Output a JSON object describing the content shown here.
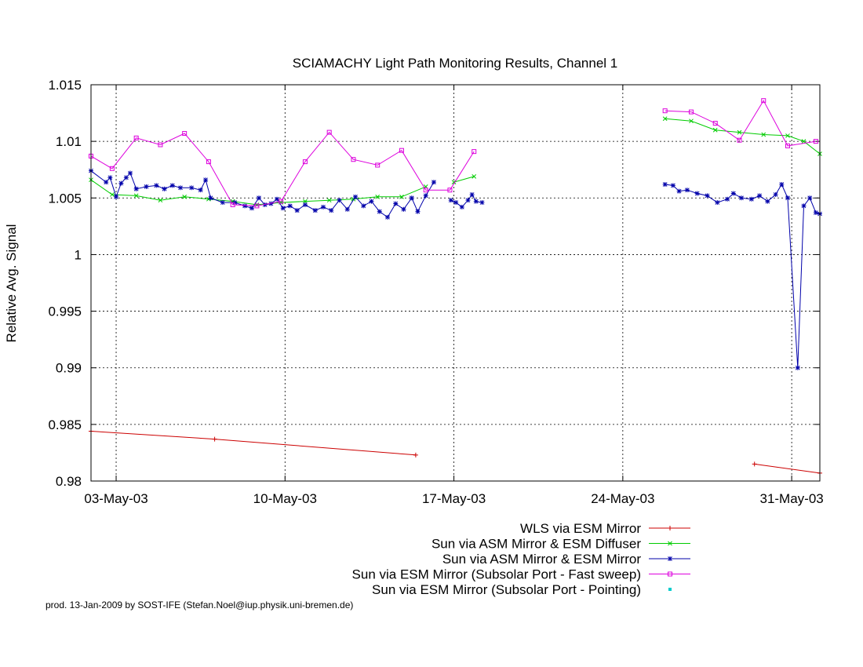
{
  "chart_data": {
    "type": "line",
    "title": "SCIAMACHY Light Path Monitoring Results, Channel 1",
    "xlabel": "",
    "ylabel": "Relative Avg. Signal",
    "x_unit": "date",
    "xlim": [
      "2003-05-01T23:00",
      "2003-06-01T04:00"
    ],
    "ylim": [
      0.98,
      1.015
    ],
    "grid": true,
    "legend_position": "bottom",
    "y_ticks": [
      "0.98",
      "0.985",
      "0.99",
      "0.995",
      "1",
      "1.005",
      "1.01",
      "1.015"
    ],
    "y_tick_values": [
      0.98,
      0.985,
      0.99,
      0.995,
      1.0,
      1.005,
      1.01,
      1.015
    ],
    "x_ticks": [
      "03-May-03",
      "10-May-03",
      "17-May-03",
      "24-May-03",
      "31-May-03"
    ],
    "x_tick_values": [
      "2003-05-03T00:00",
      "2003-05-10T00:00",
      "2003-05-17T00:00",
      "2003-05-24T00:00",
      "2003-05-31T00:00"
    ],
    "series": [
      {
        "name": "WLS via ESM Mirror",
        "color": "#cc0000",
        "marker": "plus",
        "segments": [
          [
            [
              "2003-05-01T23:00",
              0.9844
            ],
            [
              "2003-05-07T02:00",
              0.9837
            ],
            [
              "2003-05-15T10:00",
              0.9823
            ]
          ],
          [
            [
              "2003-05-29T11:00",
              0.9815
            ],
            [
              "2003-06-01T04:00",
              0.9807
            ]
          ]
        ]
      },
      {
        "name": "Sun via ASM Mirror & ESM Diffuser",
        "color": "#00cc00",
        "marker": "cross",
        "segments": [
          [
            [
              "2003-05-01T23:00",
              1.0066
            ],
            [
              "2003-05-02T20:00",
              1.0053
            ],
            [
              "2003-05-03T20:00",
              1.0052
            ],
            [
              "2003-05-04T20:00",
              1.0048
            ],
            [
              "2003-05-05T20:00",
              1.0051
            ],
            [
              "2003-05-06T20:00",
              1.0049
            ],
            [
              "2003-05-07T20:00",
              1.0047
            ],
            [
              "2003-05-08T20:00",
              1.0044
            ],
            [
              "2003-05-09T20:00",
              1.0046
            ],
            [
              "2003-05-10T20:00",
              1.0047
            ],
            [
              "2003-05-11T20:00",
              1.0048
            ],
            [
              "2003-05-12T20:00",
              1.0049
            ],
            [
              "2003-05-13T20:00",
              1.0051
            ],
            [
              "2003-05-14T20:00",
              1.0051
            ],
            [
              "2003-05-15T20:00",
              1.006
            ]
          ],
          [
            [
              "2003-05-17T00:00",
              1.0064
            ],
            [
              "2003-05-17T20:00",
              1.0069
            ]
          ],
          [
            [
              "2003-05-25T18:00",
              1.012
            ],
            [
              "2003-05-26T20:00",
              1.0118
            ],
            [
              "2003-05-27T20:00",
              1.011
            ],
            [
              "2003-05-28T20:00",
              1.0108
            ],
            [
              "2003-05-29T20:00",
              1.0106
            ],
            [
              "2003-05-30T20:00",
              1.0105
            ],
            [
              "2003-05-31T12:00",
              1.01
            ],
            [
              "2003-06-01T04:00",
              1.0089
            ]
          ]
        ]
      },
      {
        "name": "Sun via ASM Mirror & ESM Mirror",
        "color": "#0000aa",
        "marker": "star",
        "segments": [
          [
            [
              "2003-05-01T23:00",
              1.0074
            ],
            [
              "2003-05-02T14:00",
              1.0064
            ],
            [
              "2003-05-02T18:00",
              1.0068
            ],
            [
              "2003-05-03T00:00",
              1.0051
            ],
            [
              "2003-05-03T05:00",
              1.0063
            ],
            [
              "2003-05-03T10:00",
              1.0068
            ],
            [
              "2003-05-03T14:00",
              1.0072
            ],
            [
              "2003-05-03T20:00",
              1.0058
            ],
            [
              "2003-05-04T06:00",
              1.006
            ],
            [
              "2003-05-04T16:00",
              1.0061
            ],
            [
              "2003-05-05T00:00",
              1.0058
            ],
            [
              "2003-05-05T08:00",
              1.0061
            ],
            [
              "2003-05-05T16:00",
              1.0059
            ],
            [
              "2003-05-06T03:00",
              1.0059
            ],
            [
              "2003-05-06T12:00",
              1.0057
            ],
            [
              "2003-05-06T17:00",
              1.0066
            ],
            [
              "2003-05-06T22:00",
              1.005
            ],
            [
              "2003-05-07T10:00",
              1.0046
            ],
            [
              "2003-05-07T22:00",
              1.0046
            ],
            [
              "2003-05-08T08:00",
              1.0043
            ],
            [
              "2003-05-08T15:00",
              1.0041
            ],
            [
              "2003-05-08T22:00",
              1.005
            ],
            [
              "2003-05-09T04:00",
              1.0044
            ],
            [
              "2003-05-09T10:00",
              1.0045
            ],
            [
              "2003-05-09T16:00",
              1.0049
            ],
            [
              "2003-05-09T22:00",
              1.0041
            ],
            [
              "2003-05-10T05:00",
              1.0043
            ],
            [
              "2003-05-10T12:00",
              1.0039
            ],
            [
              "2003-05-10T20:00",
              1.0044
            ],
            [
              "2003-05-11T06:00",
              1.0039
            ],
            [
              "2003-05-11T14:00",
              1.0042
            ],
            [
              "2003-05-11T22:00",
              1.0039
            ],
            [
              "2003-05-12T06:00",
              1.0048
            ],
            [
              "2003-05-12T14:00",
              1.004
            ],
            [
              "2003-05-12T22:00",
              1.0051
            ],
            [
              "2003-05-13T06:00",
              1.0043
            ],
            [
              "2003-05-13T14:00",
              1.0047
            ],
            [
              "2003-05-13T22:00",
              1.0038
            ],
            [
              "2003-05-14T06:00",
              1.0033
            ],
            [
              "2003-05-14T14:00",
              1.0045
            ],
            [
              "2003-05-14T22:00",
              1.004
            ],
            [
              "2003-05-15T06:00",
              1.005
            ],
            [
              "2003-05-15T12:00",
              1.0038
            ],
            [
              "2003-05-15T20:00",
              1.0052
            ],
            [
              "2003-05-16T04:00",
              1.0064
            ]
          ],
          [
            [
              "2003-05-16T21:00",
              1.0048
            ],
            [
              "2003-05-17T02:00",
              1.0046
            ],
            [
              "2003-05-17T08:00",
              1.0042
            ],
            [
              "2003-05-17T14:00",
              1.0048
            ],
            [
              "2003-05-17T18:00",
              1.0053
            ],
            [
              "2003-05-17T22:00",
              1.0047
            ],
            [
              "2003-05-18T04:00",
              1.0046
            ]
          ],
          [
            [
              "2003-05-25T18:00",
              1.0062
            ],
            [
              "2003-05-26T02:00",
              1.0061
            ],
            [
              "2003-05-26T08:00",
              1.0056
            ],
            [
              "2003-05-26T16:00",
              1.0057
            ],
            [
              "2003-05-27T02:00",
              1.0054
            ],
            [
              "2003-05-27T12:00",
              1.0052
            ],
            [
              "2003-05-27T22:00",
              1.0046
            ],
            [
              "2003-05-28T08:00",
              1.0049
            ],
            [
              "2003-05-28T14:00",
              1.0054
            ],
            [
              "2003-05-28T22:00",
              1.005
            ],
            [
              "2003-05-29T08:00",
              1.0049
            ],
            [
              "2003-05-29T16:00",
              1.0052
            ],
            [
              "2003-05-30T00:00",
              1.0047
            ],
            [
              "2003-05-30T08:00",
              1.0053
            ],
            [
              "2003-05-30T14:00",
              1.0062
            ],
            [
              "2003-05-30T20:00",
              1.005
            ],
            [
              "2003-05-31T06:00",
              0.99
            ],
            [
              "2003-05-31T12:00",
              1.0043
            ],
            [
              "2003-05-31T18:00",
              1.005
            ],
            [
              "2003-06-01T00:00",
              1.0037
            ],
            [
              "2003-06-01T04:00",
              1.0036
            ]
          ]
        ]
      },
      {
        "name": "Sun via ESM Mirror (Subsolar Port - Fast sweep)",
        "color": "#dd00dd",
        "marker": "square",
        "segments": [
          [
            [
              "2003-05-01T23:00",
              1.0087
            ],
            [
              "2003-05-02T20:00",
              1.0076
            ],
            [
              "2003-05-03T20:00",
              1.0103
            ],
            [
              "2003-05-04T20:00",
              1.0097
            ],
            [
              "2003-05-05T20:00",
              1.0107
            ],
            [
              "2003-05-06T20:00",
              1.0082
            ],
            [
              "2003-05-07T20:00",
              1.0044
            ],
            [
              "2003-05-08T20:00",
              1.0043
            ],
            [
              "2003-05-09T20:00",
              1.0047
            ],
            [
              "2003-05-10T20:00",
              1.0082
            ],
            [
              "2003-05-11T20:00",
              1.0108
            ],
            [
              "2003-05-12T20:00",
              1.0084
            ],
            [
              "2003-05-13T20:00",
              1.0079
            ],
            [
              "2003-05-14T20:00",
              1.0092
            ],
            [
              "2003-05-15T20:00",
              1.0057
            ],
            [
              "2003-05-16T20:00",
              1.0057
            ],
            [
              "2003-05-17T20:00",
              1.0091
            ]
          ],
          [
            [
              "2003-05-25T18:00",
              1.0127
            ],
            [
              "2003-05-26T20:00",
              1.0126
            ],
            [
              "2003-05-27T20:00",
              1.0116
            ],
            [
              "2003-05-28T20:00",
              1.0101
            ],
            [
              "2003-05-29T20:00",
              1.0136
            ],
            [
              "2003-05-30T20:00",
              1.0096
            ],
            [
              "2003-06-01T00:00",
              1.01
            ]
          ]
        ]
      },
      {
        "name": "Sun via ESM Mirror (Subsolar Port - Pointing)",
        "color": "#00cccc",
        "marker": "dot",
        "segments": []
      }
    ]
  },
  "footer": {
    "credit": "prod. 13-Jan-2009 by SOST-IFE (Stefan.Noel@iup.physik.uni-bremen.de)"
  }
}
